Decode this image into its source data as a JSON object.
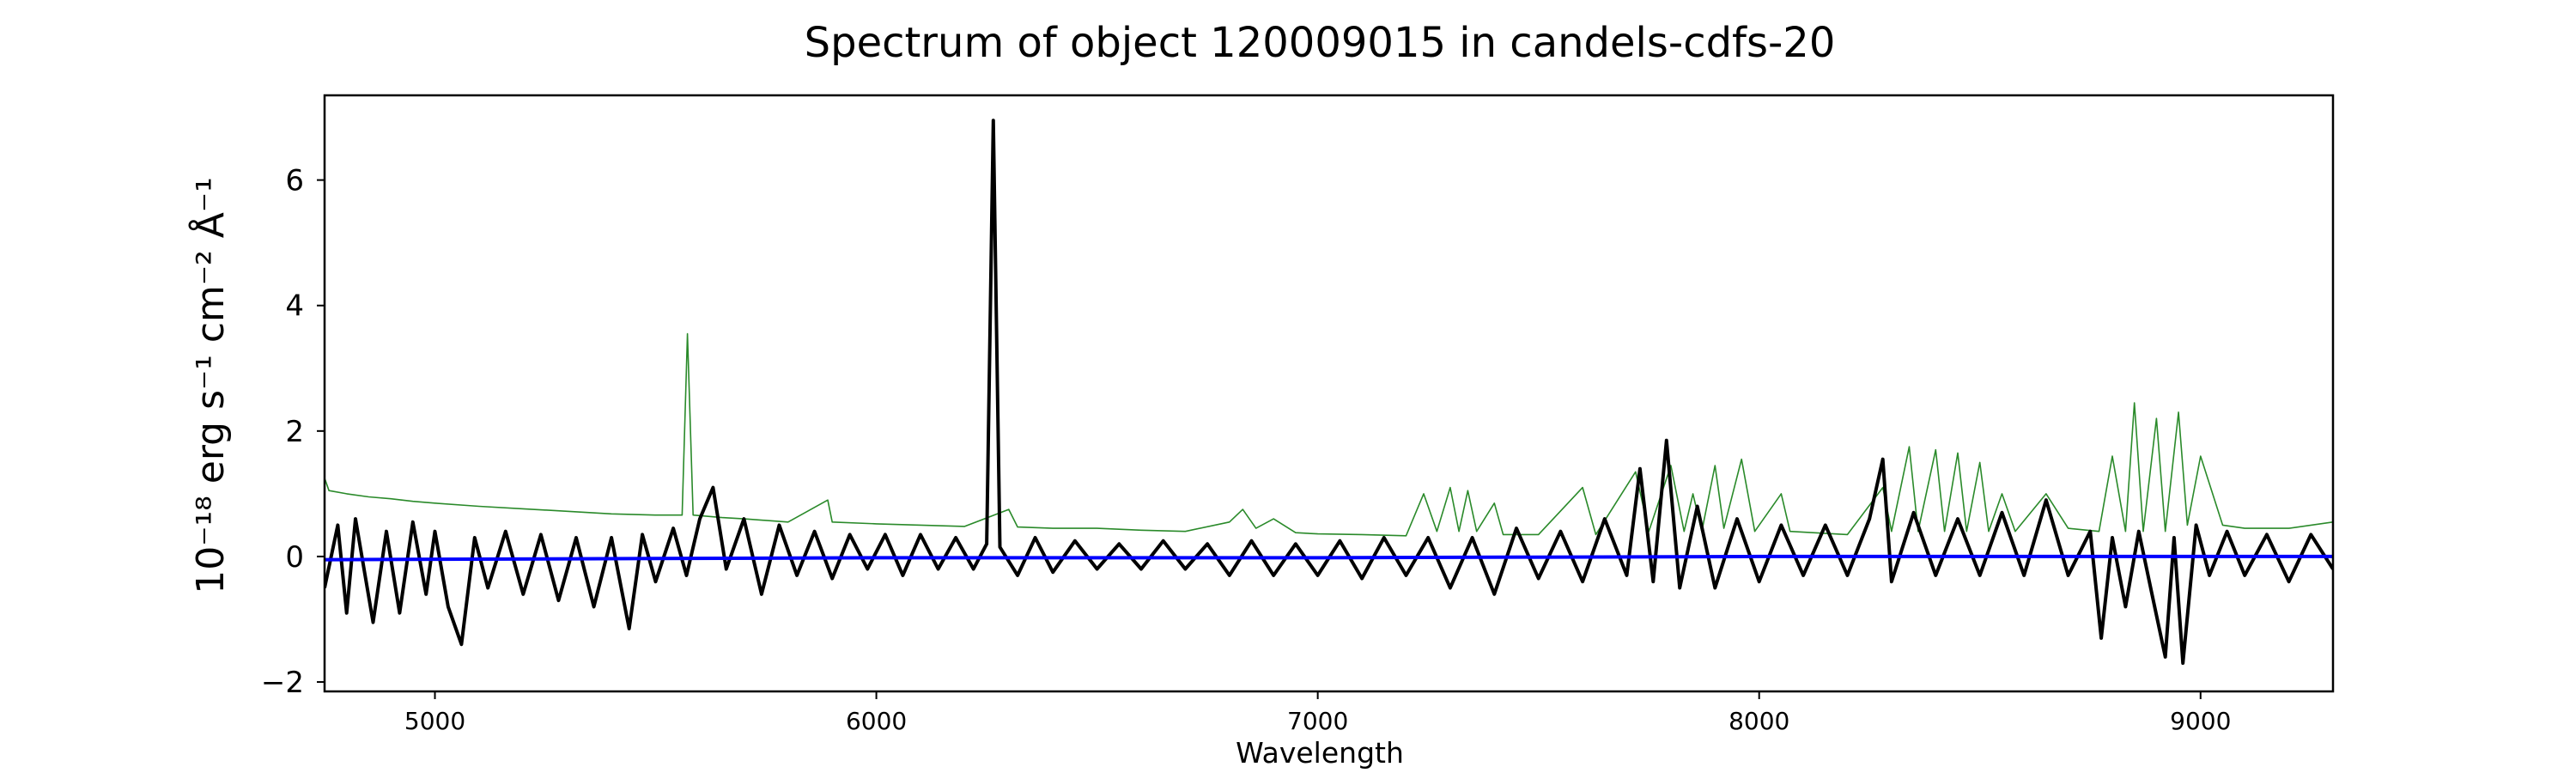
{
  "chart_data": {
    "type": "line",
    "title": "Spectrum of object 120009015 in candels-cdfs-20",
    "xlabel": "Wavelength",
    "ylabel": "10⁻¹⁸ erg s⁻¹ cm⁻² Å⁻¹",
    "xlim": [
      4750,
      9300
    ],
    "ylim": [
      -2.15,
      7.35
    ],
    "x_ticks": [
      5000,
      6000,
      7000,
      8000,
      9000
    ],
    "x_tick_labels": [
      "5000",
      "6000",
      "7000",
      "8000",
      "9000"
    ],
    "y_ticks": [
      -2,
      0,
      2,
      4,
      6
    ],
    "y_tick_labels": [
      "−2",
      "0",
      "2",
      "4",
      "6"
    ],
    "grid": false,
    "legend": "none",
    "series": [
      {
        "role": "noise",
        "color": "#2a8a2a",
        "points": [
          [
            4750,
            1.25
          ],
          [
            4760,
            1.05
          ],
          [
            4800,
            1.0
          ],
          [
            4850,
            0.95
          ],
          [
            4900,
            0.92
          ],
          [
            4950,
            0.88
          ],
          [
            5000,
            0.85
          ],
          [
            5100,
            0.8
          ],
          [
            5200,
            0.76
          ],
          [
            5300,
            0.72
          ],
          [
            5400,
            0.68
          ],
          [
            5500,
            0.66
          ],
          [
            5560,
            0.66
          ],
          [
            5572,
            3.55
          ],
          [
            5585,
            0.66
          ],
          [
            5650,
            0.62
          ],
          [
            5700,
            0.6
          ],
          [
            5800,
            0.55
          ],
          [
            5890,
            0.9
          ],
          [
            5900,
            0.55
          ],
          [
            6000,
            0.52
          ],
          [
            6100,
            0.5
          ],
          [
            6200,
            0.48
          ],
          [
            6300,
            0.75
          ],
          [
            6320,
            0.47
          ],
          [
            6400,
            0.45
          ],
          [
            6500,
            0.45
          ],
          [
            6600,
            0.42
          ],
          [
            6700,
            0.4
          ],
          [
            6800,
            0.55
          ],
          [
            6830,
            0.75
          ],
          [
            6860,
            0.45
          ],
          [
            6900,
            0.6
          ],
          [
            6950,
            0.38
          ],
          [
            7000,
            0.36
          ],
          [
            7100,
            0.35
          ],
          [
            7200,
            0.33
          ],
          [
            7240,
            1.0
          ],
          [
            7270,
            0.4
          ],
          [
            7300,
            1.1
          ],
          [
            7320,
            0.4
          ],
          [
            7340,
            1.05
          ],
          [
            7360,
            0.4
          ],
          [
            7400,
            0.85
          ],
          [
            7420,
            0.35
          ],
          [
            7500,
            0.35
          ],
          [
            7600,
            1.1
          ],
          [
            7630,
            0.35
          ],
          [
            7720,
            1.35
          ],
          [
            7750,
            0.4
          ],
          [
            7800,
            1.45
          ],
          [
            7830,
            0.4
          ],
          [
            7850,
            1.0
          ],
          [
            7870,
            0.4
          ],
          [
            7900,
            1.45
          ],
          [
            7920,
            0.45
          ],
          [
            7960,
            1.55
          ],
          [
            7990,
            0.4
          ],
          [
            8050,
            1.0
          ],
          [
            8070,
            0.4
          ],
          [
            8200,
            0.35
          ],
          [
            8280,
            1.1
          ],
          [
            8300,
            0.4
          ],
          [
            8340,
            1.75
          ],
          [
            8360,
            0.4
          ],
          [
            8400,
            1.7
          ],
          [
            8420,
            0.4
          ],
          [
            8450,
            1.65
          ],
          [
            8470,
            0.4
          ],
          [
            8500,
            1.5
          ],
          [
            8520,
            0.4
          ],
          [
            8550,
            1.0
          ],
          [
            8580,
            0.4
          ],
          [
            8650,
            1.0
          ],
          [
            8700,
            0.45
          ],
          [
            8770,
            0.4
          ],
          [
            8800,
            1.6
          ],
          [
            8830,
            0.4
          ],
          [
            8850,
            2.45
          ],
          [
            8870,
            0.4
          ],
          [
            8900,
            2.2
          ],
          [
            8920,
            0.4
          ],
          [
            8950,
            2.3
          ],
          [
            8970,
            0.5
          ],
          [
            9000,
            1.6
          ],
          [
            9050,
            0.5
          ],
          [
            9100,
            0.45
          ],
          [
            9200,
            0.45
          ],
          [
            9300,
            0.55
          ]
        ]
      },
      {
        "role": "flux",
        "color": "#000000",
        "points": [
          [
            4750,
            -0.5
          ],
          [
            4780,
            0.5
          ],
          [
            4800,
            -0.9
          ],
          [
            4820,
            0.6
          ],
          [
            4860,
            -1.05
          ],
          [
            4890,
            0.4
          ],
          [
            4920,
            -0.9
          ],
          [
            4950,
            0.55
          ],
          [
            4980,
            -0.6
          ],
          [
            5000,
            0.4
          ],
          [
            5030,
            -0.8
          ],
          [
            5060,
            -1.4
          ],
          [
            5090,
            0.3
          ],
          [
            5120,
            -0.5
          ],
          [
            5160,
            0.4
          ],
          [
            5200,
            -0.6
          ],
          [
            5240,
            0.35
          ],
          [
            5280,
            -0.7
          ],
          [
            5320,
            0.3
          ],
          [
            5360,
            -0.8
          ],
          [
            5400,
            0.3
          ],
          [
            5440,
            -1.15
          ],
          [
            5470,
            0.35
          ],
          [
            5500,
            -0.4
          ],
          [
            5540,
            0.45
          ],
          [
            5570,
            -0.3
          ],
          [
            5600,
            0.6
          ],
          [
            5630,
            1.1
          ],
          [
            5660,
            -0.2
          ],
          [
            5700,
            0.6
          ],
          [
            5740,
            -0.6
          ],
          [
            5780,
            0.5
          ],
          [
            5820,
            -0.3
          ],
          [
            5860,
            0.4
          ],
          [
            5900,
            -0.35
          ],
          [
            5940,
            0.35
          ],
          [
            5980,
            -0.2
          ],
          [
            6020,
            0.35
          ],
          [
            6060,
            -0.3
          ],
          [
            6100,
            0.35
          ],
          [
            6140,
            -0.2
          ],
          [
            6180,
            0.3
          ],
          [
            6220,
            -0.2
          ],
          [
            6250,
            0.2
          ],
          [
            6265,
            6.95
          ],
          [
            6280,
            0.15
          ],
          [
            6320,
            -0.3
          ],
          [
            6360,
            0.3
          ],
          [
            6400,
            -0.25
          ],
          [
            6450,
            0.25
          ],
          [
            6500,
            -0.2
          ],
          [
            6550,
            0.2
          ],
          [
            6600,
            -0.2
          ],
          [
            6650,
            0.25
          ],
          [
            6700,
            -0.2
          ],
          [
            6750,
            0.2
          ],
          [
            6800,
            -0.3
          ],
          [
            6850,
            0.25
          ],
          [
            6900,
            -0.3
          ],
          [
            6950,
            0.2
          ],
          [
            7000,
            -0.3
          ],
          [
            7050,
            0.25
          ],
          [
            7100,
            -0.35
          ],
          [
            7150,
            0.3
          ],
          [
            7200,
            -0.3
          ],
          [
            7250,
            0.3
          ],
          [
            7300,
            -0.5
          ],
          [
            7350,
            0.3
          ],
          [
            7400,
            -0.6
          ],
          [
            7450,
            0.45
          ],
          [
            7500,
            -0.35
          ],
          [
            7550,
            0.4
          ],
          [
            7600,
            -0.4
          ],
          [
            7650,
            0.6
          ],
          [
            7700,
            -0.3
          ],
          [
            7730,
            1.4
          ],
          [
            7760,
            -0.4
          ],
          [
            7790,
            1.85
          ],
          [
            7820,
            -0.5
          ],
          [
            7860,
            0.8
          ],
          [
            7900,
            -0.5
          ],
          [
            7950,
            0.6
          ],
          [
            8000,
            -0.4
          ],
          [
            8050,
            0.5
          ],
          [
            8100,
            -0.3
          ],
          [
            8150,
            0.5
          ],
          [
            8200,
            -0.3
          ],
          [
            8250,
            0.6
          ],
          [
            8280,
            1.55
          ],
          [
            8300,
            -0.4
          ],
          [
            8350,
            0.7
          ],
          [
            8400,
            -0.3
          ],
          [
            8450,
            0.6
          ],
          [
            8500,
            -0.3
          ],
          [
            8550,
            0.7
          ],
          [
            8600,
            -0.3
          ],
          [
            8650,
            0.9
          ],
          [
            8700,
            -0.3
          ],
          [
            8750,
            0.4
          ],
          [
            8775,
            -1.3
          ],
          [
            8800,
            0.3
          ],
          [
            8830,
            -0.8
          ],
          [
            8860,
            0.4
          ],
          [
            8890,
            -0.6
          ],
          [
            8920,
            -1.6
          ],
          [
            8940,
            0.3
          ],
          [
            8960,
            -1.7
          ],
          [
            8990,
            0.5
          ],
          [
            9020,
            -0.3
          ],
          [
            9060,
            0.4
          ],
          [
            9100,
            -0.3
          ],
          [
            9150,
            0.35
          ],
          [
            9200,
            -0.4
          ],
          [
            9250,
            0.35
          ],
          [
            9300,
            -0.2
          ]
        ]
      },
      {
        "role": "continuum",
        "color": "#0000ff",
        "points": [
          [
            4750,
            -0.05
          ],
          [
            6000,
            -0.02
          ],
          [
            7000,
            -0.02
          ],
          [
            8000,
            0.0
          ],
          [
            9000,
            0.0
          ],
          [
            9300,
            0.0
          ]
        ]
      }
    ]
  }
}
